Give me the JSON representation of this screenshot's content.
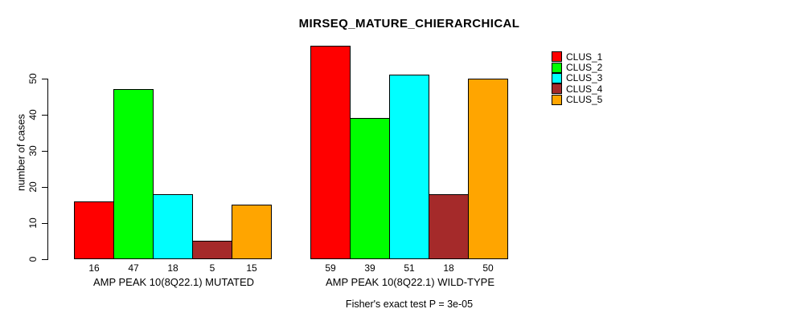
{
  "chart_data": {
    "type": "bar",
    "title": "MIRSEQ_MATURE_CHIERARCHICAL",
    "ylabel": "number of cases",
    "xlabel": "",
    "footer": "Fisher's exact test P = 3e-05",
    "ylim": [
      0,
      50
    ],
    "yticks": [
      0,
      10,
      20,
      30,
      40,
      50
    ],
    "grid": false,
    "legend_position": "top-right",
    "bar_border_color": "#000000",
    "axis_color": "#000000",
    "background_color": "#ffffff",
    "groups": [
      {
        "label": "AMP PEAK 10(8Q22.1) MUTATED"
      },
      {
        "label": "AMP PEAK 10(8Q22.1) WILD-TYPE"
      }
    ],
    "series": [
      {
        "name": "CLUS_1",
        "color": "#FF0000",
        "values": [
          16,
          59
        ]
      },
      {
        "name": "CLUS_2",
        "color": "#00FF00",
        "values": [
          47,
          39
        ]
      },
      {
        "name": "CLUS_3",
        "color": "#00FFFF",
        "values": [
          18,
          51
        ]
      },
      {
        "name": "CLUS_4",
        "color": "#A52A2A",
        "values": [
          5,
          18
        ]
      },
      {
        "name": "CLUS_5",
        "color": "#FFA500",
        "values": [
          15,
          50
        ]
      }
    ],
    "value_labels": {
      "mutated": [
        16,
        47,
        18,
        5,
        15
      ],
      "wild_type": [
        59,
        39,
        51,
        18,
        50
      ]
    }
  }
}
